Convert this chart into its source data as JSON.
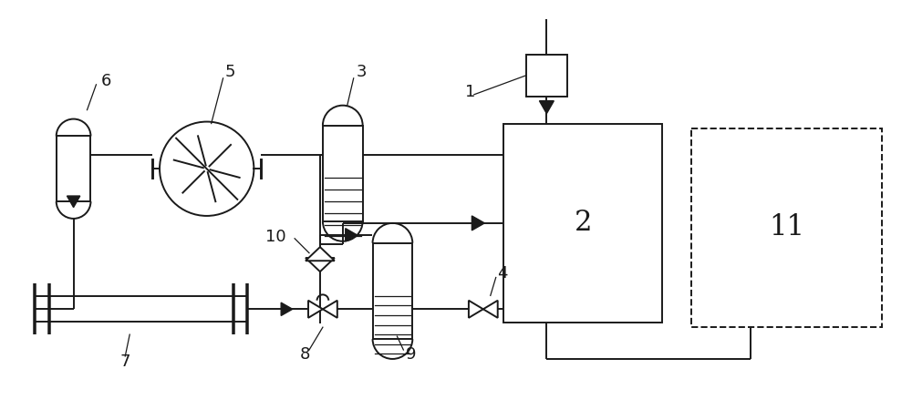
{
  "bg_color": "#ffffff",
  "line_color": "#1a1a1a",
  "line_width": 1.4,
  "figsize": [
    10.0,
    4.5
  ],
  "dpi": 100
}
